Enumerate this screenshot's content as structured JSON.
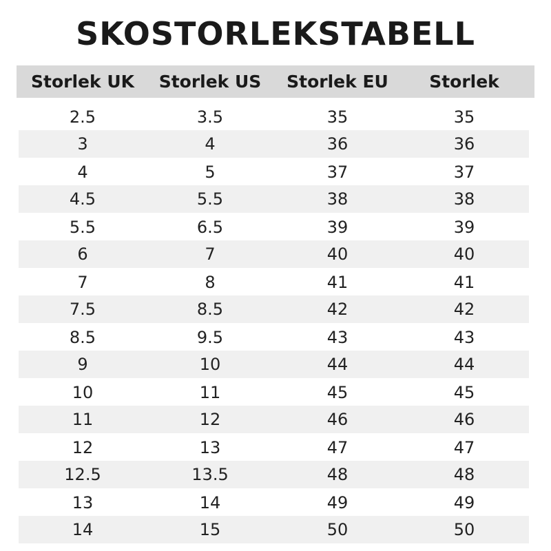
{
  "title": "SKOSTORLEKSTABELL",
  "colors": {
    "header_bg": "#d9d9d9",
    "stripe_bg": "#f0f0f0",
    "text": "#1a1a1a"
  },
  "columns": [
    "Storlek UK",
    "Storlek US",
    "Storlek EU",
    "Storlek"
  ],
  "rows": [
    [
      "2.5",
      "3.5",
      "35",
      "35"
    ],
    [
      "3",
      "4",
      "36",
      "36"
    ],
    [
      "4",
      "5",
      "37",
      "37"
    ],
    [
      "4.5",
      "5.5",
      "38",
      "38"
    ],
    [
      "5.5",
      "6.5",
      "39",
      "39"
    ],
    [
      "6",
      "7",
      "40",
      "40"
    ],
    [
      "7",
      "8",
      "41",
      "41"
    ],
    [
      "7.5",
      "8.5",
      "42",
      "42"
    ],
    [
      "8.5",
      "9.5",
      "43",
      "43"
    ],
    [
      "9",
      "10",
      "44",
      "44"
    ],
    [
      "10",
      "11",
      "45",
      "45"
    ],
    [
      "11",
      "12",
      "46",
      "46"
    ],
    [
      "12",
      "13",
      "47",
      "47"
    ],
    [
      "12.5",
      "13.5",
      "48",
      "48"
    ],
    [
      "13",
      "14",
      "49",
      "49"
    ],
    [
      "14",
      "15",
      "50",
      "50"
    ]
  ]
}
